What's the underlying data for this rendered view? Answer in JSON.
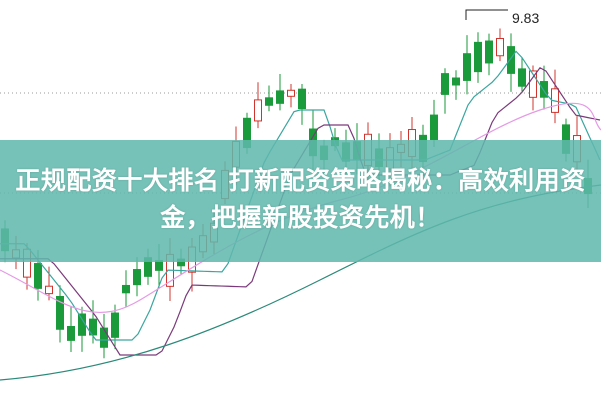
{
  "headline": "正规配资十大排名 打新配资策略揭秘：高效利用资金，把握新股投资先机！",
  "chart": {
    "high_price_label": "9.83",
    "colors": {
      "up": "#d0342c",
      "down": "#1a9a3a",
      "ma_short": "#3aa6a0",
      "ma_mid": "#7a3a7a",
      "ma_long": "#e59ae5",
      "ma_longest": "#2a8a7a",
      "banner": "#60b8ac"
    }
  }
}
